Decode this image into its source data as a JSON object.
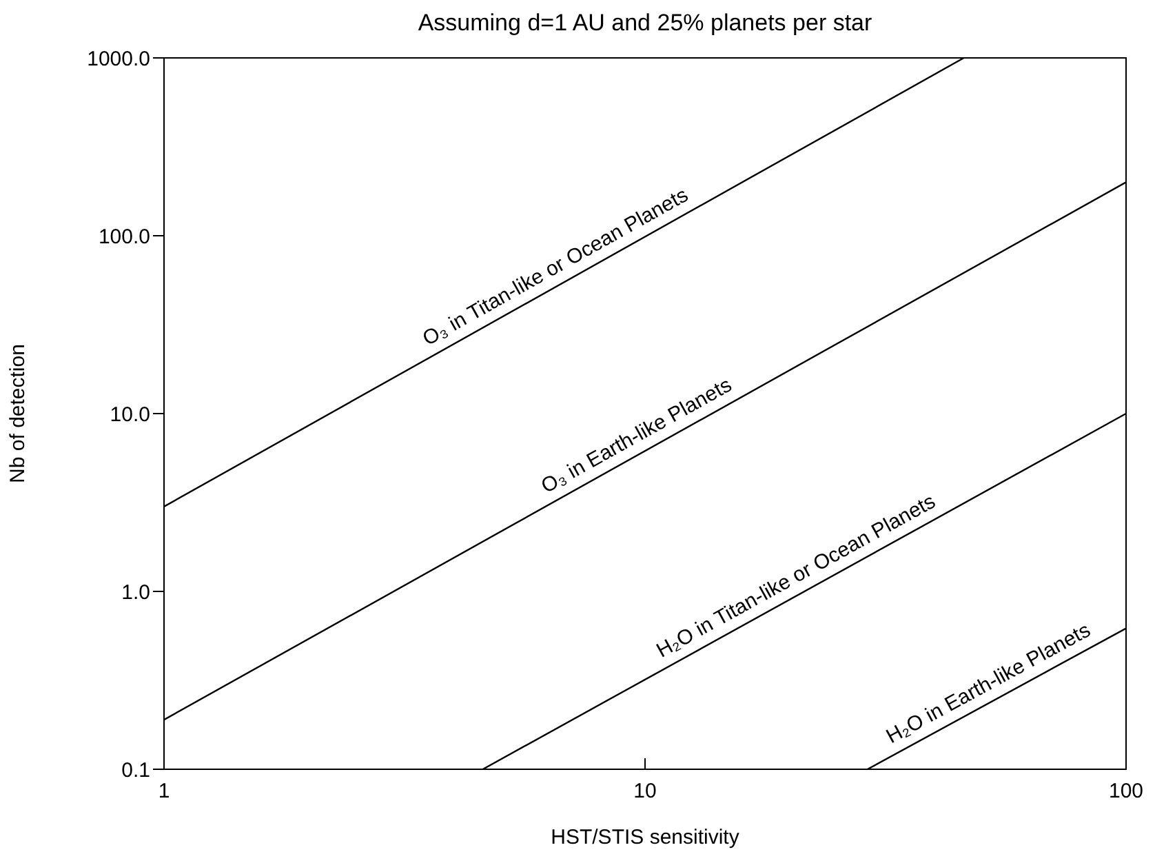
{
  "chart_data": {
    "type": "line",
    "title": "Assuming d=1 AU and 25% planets per star",
    "xlabel": "HST/STIS sensitivity",
    "ylabel": "Nb of detection",
    "log": "xy",
    "grid": false,
    "legend": false,
    "marker": "none",
    "line_style": "solid",
    "xlim": [
      1,
      100
    ],
    "xticks": [
      1,
      10,
      100
    ],
    "ylim": [
      0.1,
      1000
    ],
    "yticks": [
      {
        "value": 0.1,
        "label": "0.1"
      },
      {
        "value": 1,
        "label": "1.0"
      },
      {
        "value": 10,
        "label": "10.0"
      },
      {
        "value": 100,
        "label": "100.0"
      },
      {
        "value": 1000,
        "label": "1000.0"
      }
    ],
    "series": [
      {
        "name": "O₃ in Titan-like or Ocean Planets",
        "color": "#000000",
        "x": [
          1,
          46
        ],
        "values": [
          3,
          1000
        ]
      },
      {
        "name": "O₃ in Earth-like Planets",
        "color": "#000000",
        "x": [
          1,
          100
        ],
        "values": [
          0.19,
          200
        ]
      },
      {
        "name": "H₂O in Titan-like or Ocean Planets",
        "color": "#000000",
        "x": [
          4.6,
          100
        ],
        "values": [
          0.1,
          10
        ]
      },
      {
        "name": "H₂O in Earth-like Planets",
        "color": "#000000",
        "x": [
          29,
          100
        ],
        "values": [
          0.1,
          0.62
        ]
      }
    ]
  }
}
